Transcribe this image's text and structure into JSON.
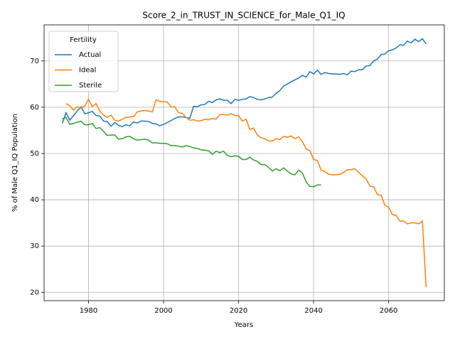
{
  "chart_data": {
    "type": "line",
    "title": "Score_2_in_TRUST_IN_SCIENCE_for_Male_Q1_IQ",
    "x_label": "Years",
    "y_label": "% of Male Q1_IQ Population",
    "legend_title": "Fertility",
    "legend": "upper left",
    "grid": true,
    "xlim": [
      1968.15,
      2074.85
    ],
    "ylim": [
      18.2,
      77.8
    ],
    "xticks": [
      1980,
      2000,
      2020,
      2040,
      2060
    ],
    "yticks": [
      20,
      30,
      40,
      50,
      60,
      70
    ],
    "x": [
      1973,
      1974,
      1975,
      1976,
      1977,
      1978,
      1979,
      1980,
      1981,
      1982,
      1983,
      1984,
      1985,
      1986,
      1987,
      1988,
      1989,
      1990,
      1991,
      1992,
      1993,
      1994,
      1995,
      1996,
      1997,
      1998,
      1999,
      2000,
      2001,
      2002,
      2003,
      2004,
      2005,
      2006,
      2007,
      2008,
      2009,
      2010,
      2011,
      2012,
      2013,
      2014,
      2015,
      2016,
      2017,
      2018,
      2019,
      2020,
      2021,
      2022,
      2023,
      2024,
      2025,
      2026,
      2027,
      2028,
      2029,
      2030,
      2031,
      2032,
      2033,
      2034,
      2035,
      2036,
      2037,
      2038,
      2039,
      2040,
      2041,
      2042,
      2043,
      2044,
      2045,
      2046,
      2047,
      2048,
      2049,
      2050,
      2051,
      2052,
      2053,
      2054,
      2055,
      2056,
      2057,
      2058,
      2059,
      2060,
      2061,
      2062,
      2063,
      2064,
      2065,
      2066,
      2067,
      2068,
      2069,
      2070
    ],
    "series": [
      {
        "name": "Actual",
        "color": "#1f77b4",
        "values": [
          56.5,
          58.8,
          57.2,
          58.2,
          59.2,
          60.1,
          58.6,
          58.8,
          59.1,
          58.2,
          58.1,
          57.0,
          56.9,
          55.9,
          56.7,
          56.1,
          55.8,
          56.2,
          56.0,
          56.8,
          56.6,
          57.0,
          57.0,
          56.9,
          56.5,
          56.4,
          56.0,
          56.3,
          56.7,
          57.1,
          57.6,
          57.9,
          57.9,
          57.8,
          57.6,
          60.2,
          60.1,
          60.5,
          60.6,
          61.3,
          61.0,
          61.6,
          61.8,
          61.5,
          61.5,
          60.8,
          61.7,
          61.5,
          61.7,
          61.8,
          62.3,
          62.1,
          61.7,
          61.6,
          61.8,
          62.1,
          62.2,
          63.0,
          63.6,
          64.6,
          65.0,
          65.5,
          65.9,
          66.3,
          66.9,
          66.5,
          67.7,
          67.2,
          68.0,
          67.1,
          67.5,
          67.3,
          67.2,
          67.2,
          67.1,
          67.3,
          67.0,
          67.8,
          67.7,
          68.1,
          68.1,
          68.9,
          69.0,
          70.0,
          70.4,
          71.4,
          71.5,
          72.2,
          72.4,
          72.8,
          73.5,
          73.4,
          74.3,
          73.9,
          74.7,
          74.2,
          74.8,
          73.7
        ]
      },
      {
        "name": "Ideal",
        "color": "#ff7f0e",
        "values": [
          null,
          60.8,
          60.3,
          59.4,
          60.1,
          59.8,
          60.3,
          61.7,
          60.1,
          60.8,
          59.2,
          58.3,
          57.8,
          58.3,
          57.2,
          57.0,
          57.4,
          57.8,
          57.9,
          58.0,
          59.0,
          59.2,
          59.3,
          59.2,
          59.0,
          61.6,
          61.3,
          61.2,
          61.1,
          60.1,
          60.1,
          58.8,
          58.7,
          57.8,
          57.2,
          57.3,
          57.0,
          57.1,
          57.4,
          57.3,
          57.6,
          57.4,
          58.4,
          58.4,
          58.3,
          58.6,
          58.2,
          58.2,
          57.0,
          57.4,
          55.2,
          55.5,
          54.0,
          53.4,
          53.2,
          52.7,
          52.7,
          53.2,
          53.0,
          53.7,
          53.5,
          53.8,
          53.2,
          53.6,
          52.6,
          51.0,
          50.6,
          48.7,
          48.5,
          46.4,
          46.1,
          45.5,
          45.4,
          45.4,
          45.5,
          45.9,
          46.5,
          46.5,
          46.7,
          45.9,
          45.2,
          44.5,
          43.0,
          42.8,
          41.1,
          41.0,
          38.8,
          38.4,
          36.8,
          36.6,
          35.4,
          35.4,
          34.8,
          35.0,
          35.0,
          34.8,
          35.4,
          21.1
        ]
      },
      {
        "name": "Sterile",
        "color": "#2ca02c",
        "values": [
          57.5,
          57.8,
          56.3,
          56.5,
          56.8,
          57.0,
          56.2,
          56.2,
          56.5,
          55.4,
          55.6,
          54.8,
          53.9,
          54.0,
          54.0,
          53.1,
          53.2,
          53.6,
          53.7,
          53.2,
          52.9,
          53.0,
          53.1,
          52.9,
          52.3,
          52.3,
          52.2,
          52.2,
          52.1,
          51.7,
          51.7,
          51.6,
          51.4,
          51.7,
          51.5,
          51.2,
          51.1,
          50.8,
          50.7,
          50.6,
          49.8,
          50.5,
          50.2,
          50.5,
          49.6,
          49.3,
          49.5,
          49.4,
          48.7,
          48.7,
          49.2,
          48.6,
          48.3,
          47.6,
          47.6,
          47.0,
          46.2,
          46.7,
          46.3,
          46.9,
          46.2,
          45.6,
          45.4,
          46.4,
          45.8,
          43.9,
          42.9,
          42.8,
          43.2,
          43.2,
          null,
          null,
          null,
          null,
          null,
          null,
          null,
          null,
          null,
          null,
          null,
          null,
          null,
          null,
          null,
          null,
          null,
          null,
          null,
          null,
          null,
          null,
          null,
          null,
          null,
          null,
          null,
          null
        ]
      }
    ]
  }
}
